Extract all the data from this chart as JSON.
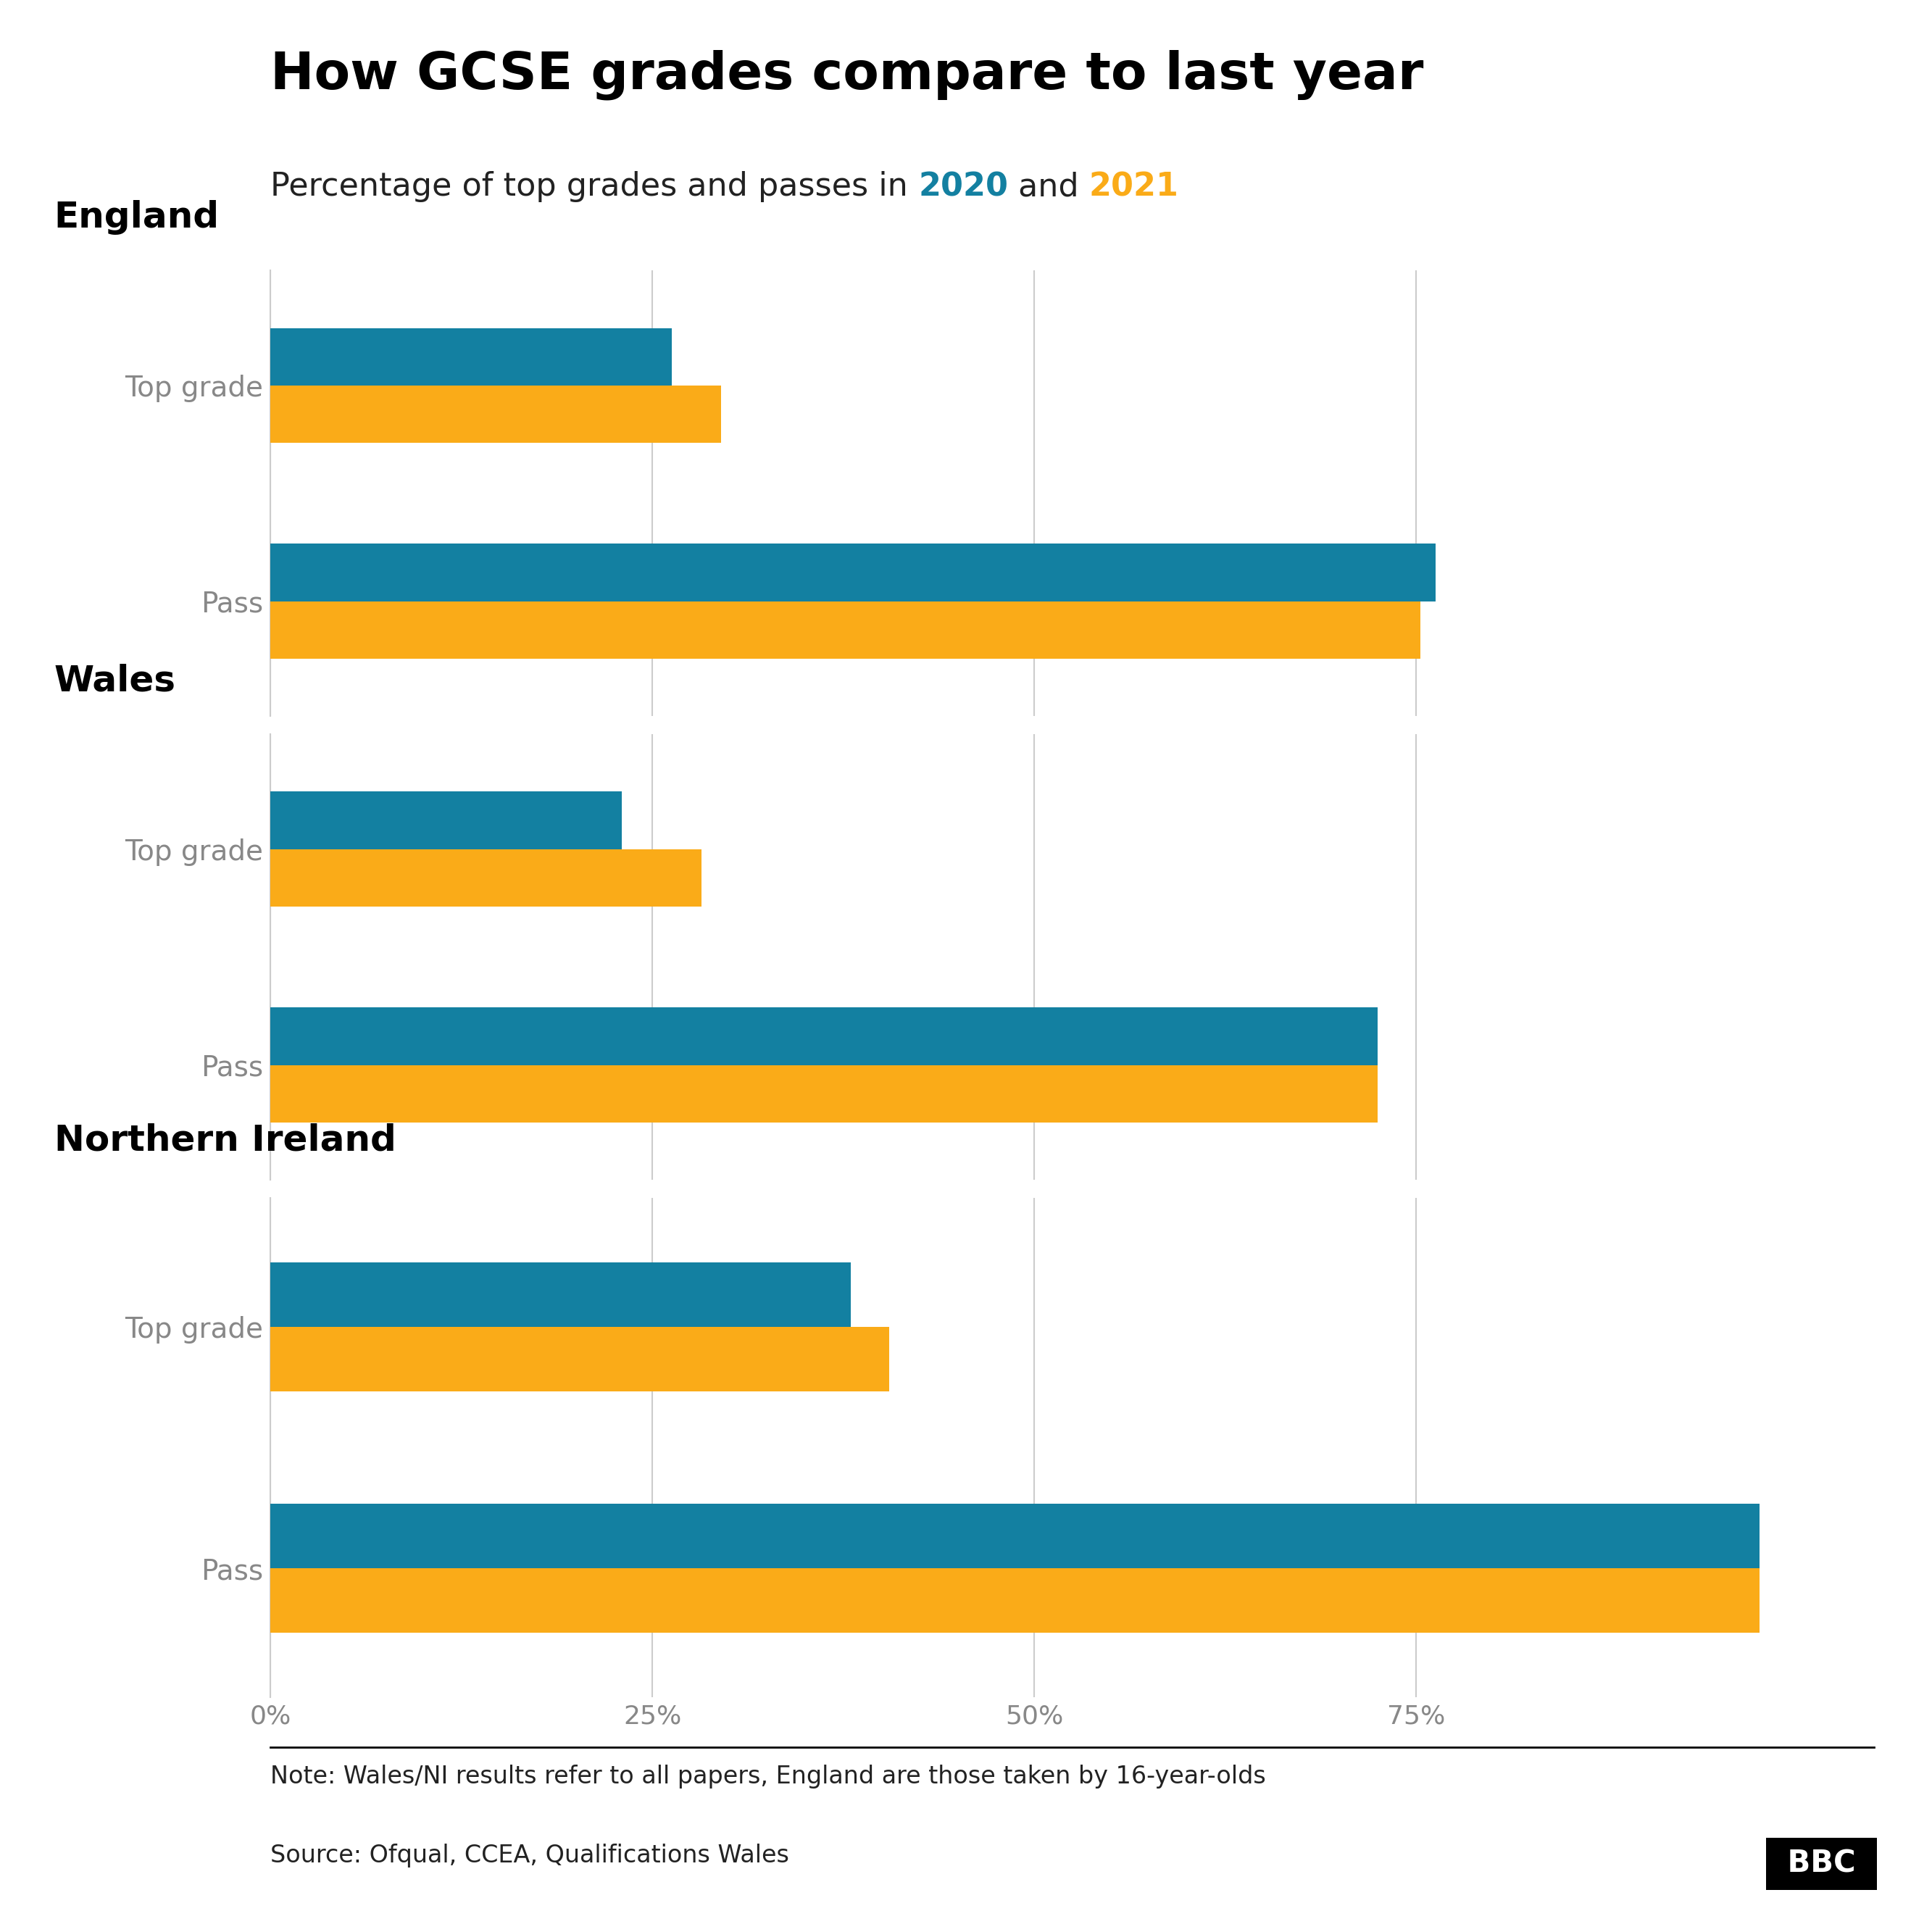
{
  "title": "How GCSE grades compare to last year",
  "subtitle_prefix": "Percentage of top grades and passes in ",
  "subtitle_2020": "2020",
  "subtitle_and": " and ",
  "subtitle_2021": "2021",
  "color_2020": "#1380A1",
  "color_2021": "#FAAB18",
  "sections": [
    "England",
    "Wales",
    "Northern Ireland"
  ],
  "categories": [
    "Top grade",
    "Pass"
  ],
  "data": {
    "England": {
      "Top grade": {
        "2020": 26.3,
        "2021": 29.5
      },
      "Pass": {
        "2020": 76.3,
        "2021": 75.3
      }
    },
    "Wales": {
      "Top grade": {
        "2020": 23.0,
        "2021": 28.2
      },
      "Pass": {
        "2020": 72.5,
        "2021": 72.5
      }
    },
    "Northern Ireland": {
      "Top grade": {
        "2020": 38.0,
        "2021": 40.5
      },
      "Pass": {
        "2020": 97.5,
        "2021": 97.5
      }
    }
  },
  "xlim": [
    0,
    105
  ],
  "xticks": [
    0,
    25,
    50,
    75
  ],
  "xticklabels": [
    "0%",
    "25%",
    "50%",
    "75%"
  ],
  "note": "Note: Wales/NI results refer to all papers, England are those taken by 16-year-olds",
  "source": "Source: Ofqual, CCEA, Qualifications Wales",
  "background_color": "#FFFFFF",
  "bar_height": 0.32,
  "title_fontsize": 52,
  "subtitle_fontsize": 32,
  "section_label_fontsize": 36,
  "yticklabel_fontsize": 28,
  "xticklabel_fontsize": 26,
  "note_fontsize": 24,
  "source_fontsize": 24,
  "grid_color": "#CCCCCC",
  "tick_color": "#888888",
  "label_color": "#888888"
}
